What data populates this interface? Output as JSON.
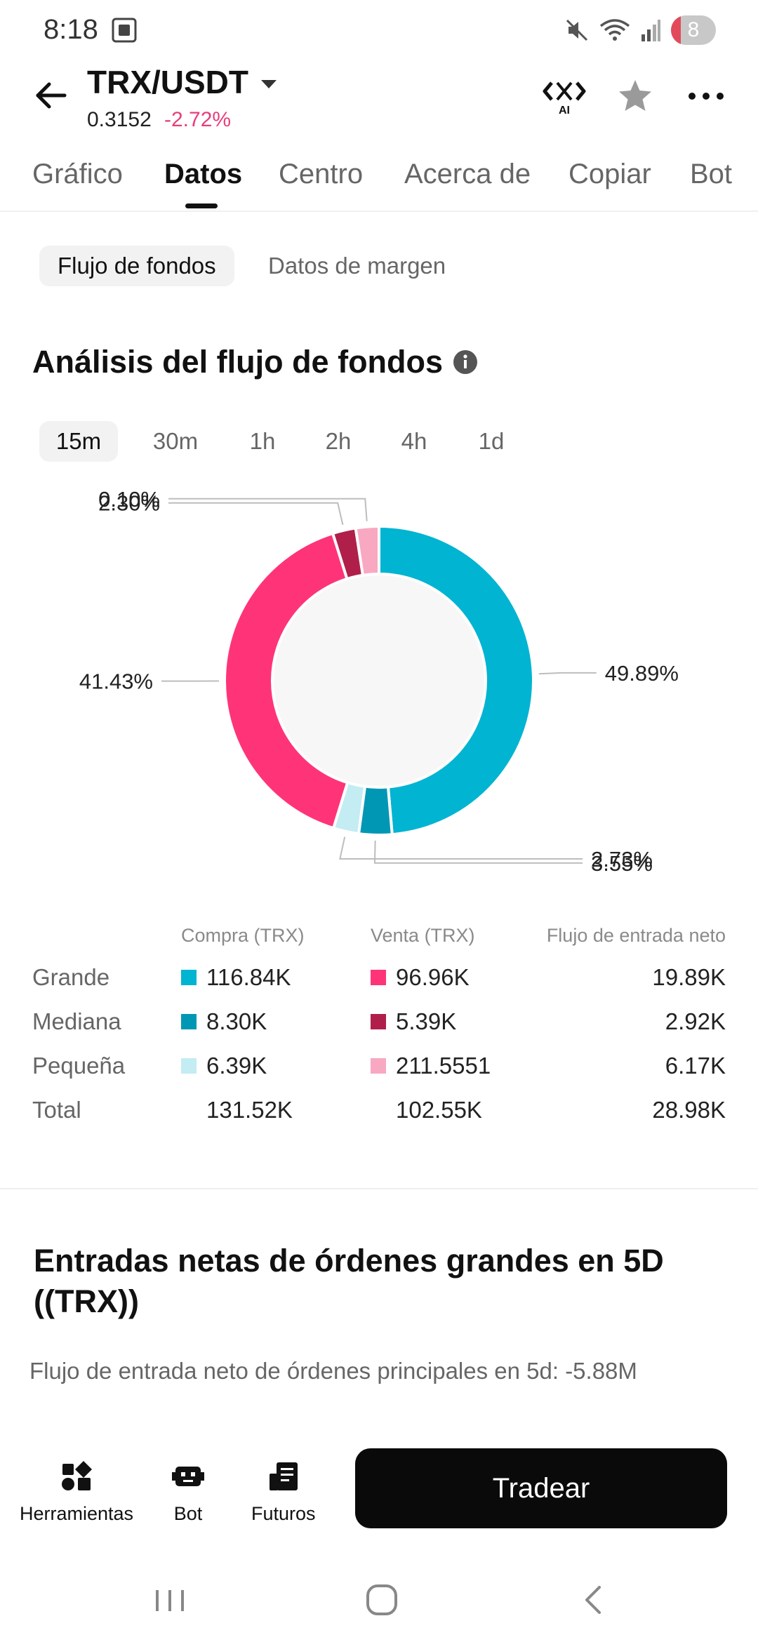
{
  "status_bar": {
    "time": "8:18",
    "battery": "8"
  },
  "header": {
    "pair": "TRX/USDT",
    "price": "0.3152",
    "change": "-2.72%",
    "ai_label": "AI"
  },
  "tabs": [
    "Gráfico",
    "Datos",
    "Centro",
    "Acerca de",
    "Copiar",
    "Bot"
  ],
  "active_tab": "Datos",
  "sub_tabs": [
    "Flujo de fondos",
    "Datos de margen"
  ],
  "section_title": "Análisis del flujo de fondos",
  "timeframes": [
    "15m",
    "30m",
    "1h",
    "2h",
    "4h",
    "1d"
  ],
  "active_timeframe": "15m",
  "colors": {
    "buy_large": "#00b4d2",
    "buy_medium": "#0097b5",
    "buy_small": "#c3ecf3",
    "sell_large": "#ff3478",
    "sell_medium": "#b01f4a",
    "sell_small": "#f9a8c2",
    "accent_negative": "#e83e7a"
  },
  "chart_data": {
    "type": "pie",
    "style": "donut",
    "slices": [
      {
        "label": "49.89%",
        "value": 49.89,
        "color": "#00b4d2"
      },
      {
        "label": "3.55%",
        "value": 3.55,
        "color": "#0097b5"
      },
      {
        "label": "2.73%",
        "value": 2.73,
        "color": "#c3ecf3"
      },
      {
        "label": "41.43%",
        "value": 41.43,
        "color": "#ff3478"
      },
      {
        "label": "2.30%",
        "value": 2.3,
        "color": "#b01f4a"
      },
      {
        "label": "0.10%",
        "value": 0.1,
        "color": "#f9a8c2"
      }
    ]
  },
  "flow_table": {
    "headers": {
      "buy": "Compra (TRX)",
      "sell": "Venta (TRX)",
      "net": "Flujo de entrada neto"
    },
    "rows": [
      {
        "label": "Grande",
        "buy": "116.84K",
        "sell": "96.96K",
        "net": "19.89K"
      },
      {
        "label": "Mediana",
        "buy": "8.30K",
        "sell": "5.39K",
        "net": "2.92K"
      },
      {
        "label": "Pequeña",
        "buy": "6.39K",
        "sell": "211.5551",
        "net": "6.17K"
      },
      {
        "label": "Total",
        "buy": "131.52K",
        "sell": "102.55K",
        "net": "28.98K"
      }
    ]
  },
  "large_orders": {
    "title": "Entradas netas de órdenes grandes en 5D ((TRX))",
    "subtitle": "Flujo de entrada neto de órdenes principales en 5d: -5.88M"
  },
  "bottom_bar": {
    "tools": "Herramientas",
    "bot": "Bot",
    "futures": "Futuros",
    "trade": "Tradear"
  }
}
